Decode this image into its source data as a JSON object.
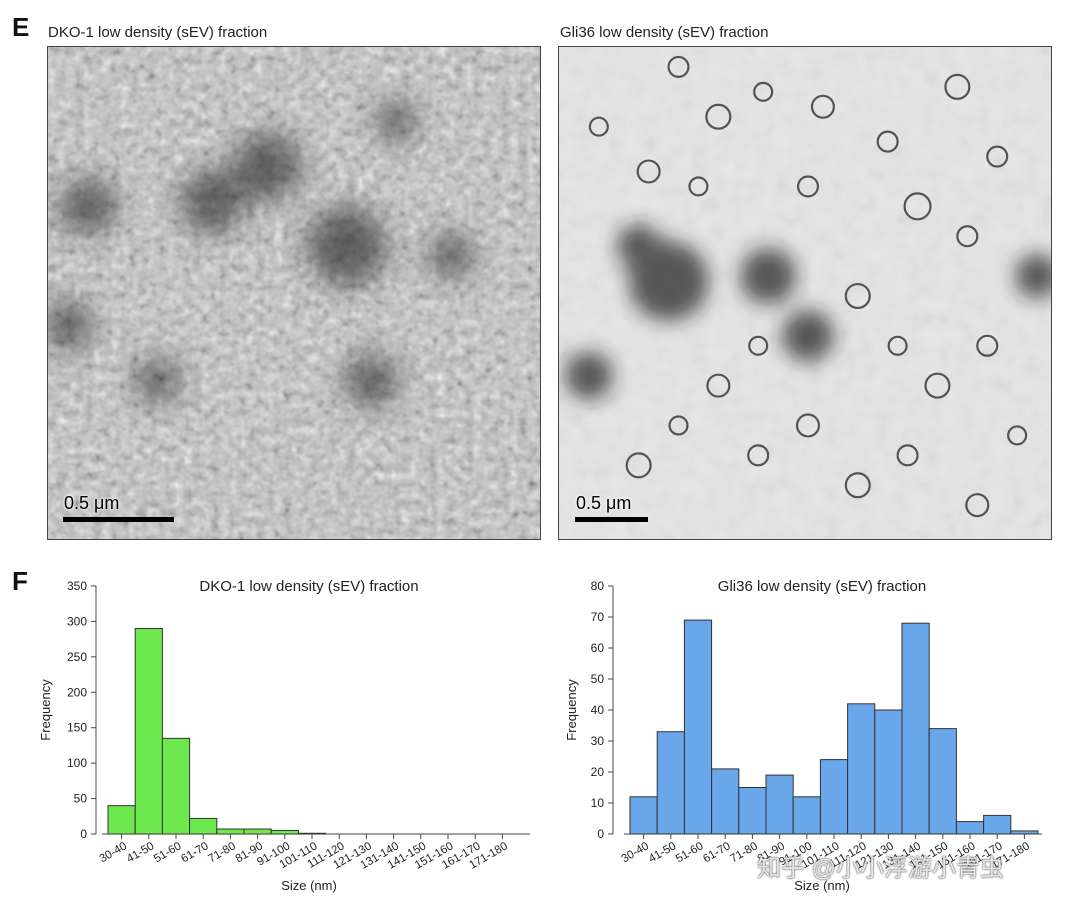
{
  "panels": {
    "e": {
      "letter": "E",
      "left_title": "DKO-1 low density (sEV) fraction",
      "right_title": "Gli36 low density (sEV) fraction",
      "left_scalebar": "0.5 μm",
      "right_scalebar": "0.5 μm"
    },
    "f": {
      "letter": "F"
    }
  },
  "watermark": "知乎 @小小浮游小青虫",
  "colors": {
    "green": "#6ee84f",
    "blue": "#6aa6ea",
    "axis": "#444444"
  },
  "chart_data": [
    {
      "type": "bar",
      "title": "DKO-1 low density (sEV) fraction",
      "xlabel": "Size (nm)",
      "ylabel": "Frequency",
      "ylim": [
        0,
        350
      ],
      "yticks": [
        0,
        50,
        100,
        150,
        200,
        250,
        300,
        350
      ],
      "categories": [
        "30-40",
        "41-50",
        "51-60",
        "61-70",
        "71-80",
        "81-90",
        "91-100",
        "101-110",
        "111-120",
        "121-130",
        "131-140",
        "141-150",
        "151-160",
        "161-170",
        "171-180"
      ],
      "values": [
        40,
        290,
        135,
        22,
        7,
        7,
        5,
        1,
        0,
        0,
        0,
        0,
        0,
        0,
        0
      ],
      "color": "#6ee84f"
    },
    {
      "type": "bar",
      "title": "Gli36 low density (sEV) fraction",
      "xlabel": "Size (nm)",
      "ylabel": "Frequency",
      "ylim": [
        0,
        80
      ],
      "yticks": [
        0,
        10,
        20,
        30,
        40,
        50,
        60,
        70,
        80
      ],
      "categories": [
        "30-40",
        "41-50",
        "51-60",
        "61-70",
        "71-80",
        "81-90",
        "91-100",
        "101-110",
        "111-120",
        "121-130",
        "131-140",
        "141-150",
        "151-160",
        "161-170",
        "171-180"
      ],
      "values": [
        12,
        33,
        69,
        21,
        15,
        19,
        12,
        24,
        42,
        40,
        68,
        34,
        4,
        6,
        1
      ],
      "color": "#6aa6ea"
    }
  ]
}
